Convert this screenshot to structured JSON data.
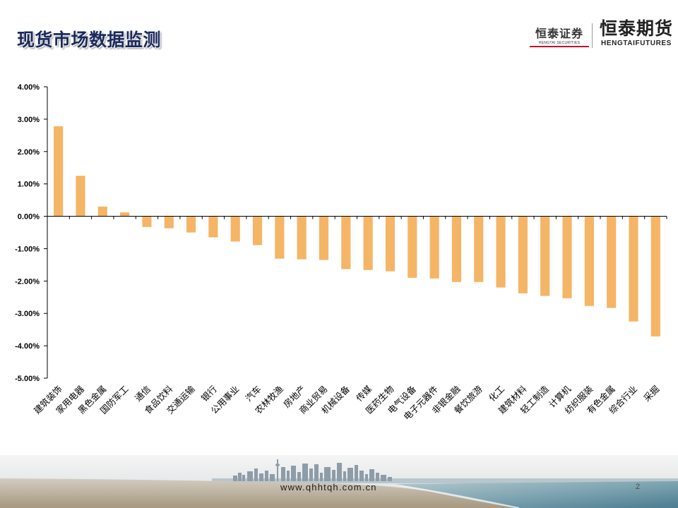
{
  "slide": {
    "title": "现货市场数据监测",
    "website": "www.qhhtqh.com.cn",
    "page_number": "2"
  },
  "logos": {
    "securities": {
      "name": "恒泰证券",
      "english": "HENGTAI SECURITIES"
    },
    "futures": {
      "name": "恒泰期货",
      "english": "HENGTAIFUTURES"
    }
  },
  "colors": {
    "bar": "#F5B566",
    "axis": "#000000",
    "title_text": "#1B2A5C",
    "logo_accent": "#C8102E"
  },
  "chart_data": {
    "type": "bar",
    "categories": [
      "建筑装饰",
      "家用电器",
      "黑色金属",
      "国防军工",
      "通信",
      "食品饮料",
      "交通运输",
      "银行",
      "公用事业",
      "汽车",
      "农林牧渔",
      "房地产",
      "商业贸易",
      "机械设备",
      "传媒",
      "医药生物",
      "电气设备",
      "电子元器件",
      "非银金融",
      "餐饮旅游",
      "化工",
      "建筑材料",
      "轻工制造",
      "计算机",
      "纺织服装",
      "有色金属",
      "综合行业",
      "采掘"
    ],
    "values": [
      2.78,
      1.25,
      0.3,
      0.12,
      -0.33,
      -0.37,
      -0.5,
      -0.65,
      -0.78,
      -0.89,
      -1.31,
      -1.33,
      -1.35,
      -1.63,
      -1.66,
      -1.7,
      -1.9,
      -1.92,
      -2.03,
      -2.03,
      -2.2,
      -2.38,
      -2.46,
      -2.53,
      -2.77,
      -2.83,
      -3.25,
      -3.71
    ],
    "ylim": [
      -5,
      4
    ],
    "yticks": [
      4,
      3,
      2,
      1,
      0,
      -1,
      -2,
      -3,
      -4,
      -5
    ],
    "ytick_labels": [
      "4.00%",
      "3.00%",
      "2.00%",
      "1.00%",
      "0.00%",
      "-1.00%",
      "-2.00%",
      "-3.00%",
      "-4.00%",
      "-5.00%"
    ],
    "grid": false,
    "legend": "none"
  }
}
